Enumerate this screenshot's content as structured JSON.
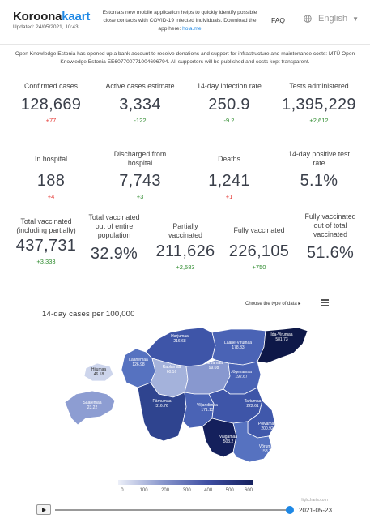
{
  "header": {
    "logo_main": "Koroona",
    "logo_accent": "kaart",
    "updated": "Updated: 24/05/2021, 10:43",
    "notice": "Estonia's new mobile application helps to quickly identify possible close contacts with COVID-19 infected individuals. Download the app here:",
    "notice_link": "hoia.me",
    "faq": "FAQ",
    "language": "English"
  },
  "donation": "Open Knowledge Estonia has opened up a bank account to receive donations and support for infrastructure and maintenance costs: MTÜ Open Knowledge Estonia EE607700771004696794. All supporters will be published and costs kept transparent.",
  "stats": {
    "confirmed": {
      "label": "Confirmed cases",
      "value": "128,669",
      "delta": "+77"
    },
    "active": {
      "label": "Active cases estimate",
      "value": "3,334",
      "delta": "-122"
    },
    "infection_rate": {
      "label": "14-day infection rate",
      "value": "250.9",
      "delta": "-9.2"
    },
    "tests": {
      "label": "Tests administered",
      "value": "1,395,229",
      "delta": "+2,612"
    },
    "hospital": {
      "label": "In hospital",
      "value": "188",
      "delta": "+4"
    },
    "discharged": {
      "label": "Discharged from hospital",
      "value": "7,743",
      "delta": "+3"
    },
    "deaths": {
      "label": "Deaths",
      "value": "1,241",
      "delta": "+1"
    },
    "positive_rate": {
      "label": "14-day positive test rate",
      "value": "5.1%",
      "delta": ""
    },
    "total_vaccinated": {
      "label": "Total vaccinated (including partially)",
      "value": "437,731",
      "delta": "+3,333"
    },
    "vaccinated_share": {
      "label": "Total vaccinated out of entire population",
      "value": "32.9%",
      "delta": ""
    },
    "partially": {
      "label": "Partially vaccinated",
      "value": "211,626",
      "delta": "+2,583"
    },
    "fully": {
      "label": "Fully vaccinated",
      "value": "226,105",
      "delta": "+750"
    },
    "fully_share": {
      "label": "Fully vaccinated out of total vaccinated",
      "value": "51.6%",
      "delta": ""
    }
  },
  "chart": {
    "title": "14-day cases per 100,000",
    "select_label": "Choose the type of data",
    "credit": "Highcharts.com",
    "legend_ticks": [
      "0",
      "100",
      "200",
      "300",
      "400",
      "500",
      "600"
    ],
    "colors": {
      "low": "#eceff8",
      "mid": "#3f4fa3",
      "high": "#16215e"
    },
    "counties": [
      {
        "name": "Harjumaa",
        "value": "216.68"
      },
      {
        "name": "Lääne-Virumaa",
        "value": "178.83"
      },
      {
        "name": "Ida-Virumaa",
        "value": "581.73"
      },
      {
        "name": "Läänemaa",
        "value": "126.98"
      },
      {
        "name": "Raplamaa",
        "value": "60.16"
      },
      {
        "name": "Järvamaa",
        "value": "99.08"
      },
      {
        "name": "Hiiumaa",
        "value": "46.18"
      },
      {
        "name": "Jõgevamaa",
        "value": "192.67"
      },
      {
        "name": "Saaremaa",
        "value": "23.22"
      },
      {
        "name": "Pärnumaa",
        "value": "316.76"
      },
      {
        "name": "Viljandimaa",
        "value": "171.13"
      },
      {
        "name": "Tartumaa",
        "value": "222.61"
      },
      {
        "name": "Põlvamaa",
        "value": "200.92"
      },
      {
        "name": "Valgamaa",
        "value": "503.2"
      },
      {
        "name": "Võrumaa",
        "value": "158.33"
      }
    ]
  },
  "timeline": {
    "date": "2021-05-23",
    "progress": 1.0
  }
}
